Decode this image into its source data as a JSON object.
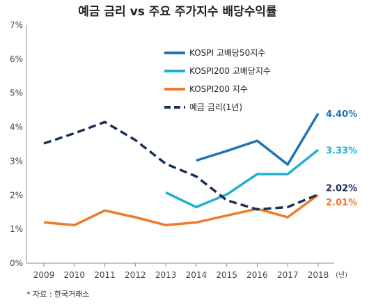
{
  "chart_data": {
    "type": "line",
    "title": "예금 금리 vs 주요 주가지수 배당수익률",
    "x": [
      "2009",
      "2010",
      "2011",
      "2012",
      "2013",
      "2014",
      "2015",
      "2016",
      "2017",
      "2018"
    ],
    "x_unit": "(년)",
    "ylim": [
      0,
      7
    ],
    "y_ticks": [
      "0%",
      "1%",
      "2%",
      "3%",
      "4%",
      "5%",
      "6%",
      "7%"
    ],
    "grid": false,
    "legend_position": "top-right",
    "series": [
      {
        "name": "KOSPI 고배당50지수",
        "color": "#1f74b4",
        "dash": false,
        "values": [
          null,
          null,
          null,
          null,
          null,
          3.02,
          3.3,
          3.6,
          2.9,
          4.4
        ],
        "end_label": "4.40%"
      },
      {
        "name": "KOSPI200 고배당지수",
        "color": "#1fb0d0",
        "dash": false,
        "values": [
          null,
          null,
          null,
          null,
          2.08,
          1.65,
          2.02,
          2.62,
          2.62,
          3.33
        ],
        "end_label": "3.33%"
      },
      {
        "name": "KOSPI200 지수",
        "color": "#ee7a2a",
        "dash": false,
        "values": [
          1.2,
          1.12,
          1.55,
          1.35,
          1.12,
          1.2,
          1.4,
          1.6,
          1.35,
          2.01
        ],
        "end_label": "2.01%"
      },
      {
        "name": "예금 금리(1년)",
        "color": "#1b2f55",
        "dash": true,
        "values": [
          3.52,
          3.82,
          4.15,
          3.62,
          2.92,
          2.55,
          1.85,
          1.58,
          1.65,
          2.02
        ],
        "end_label": "2.02%"
      }
    ],
    "source": "* 자료 : 한국거래소"
  }
}
